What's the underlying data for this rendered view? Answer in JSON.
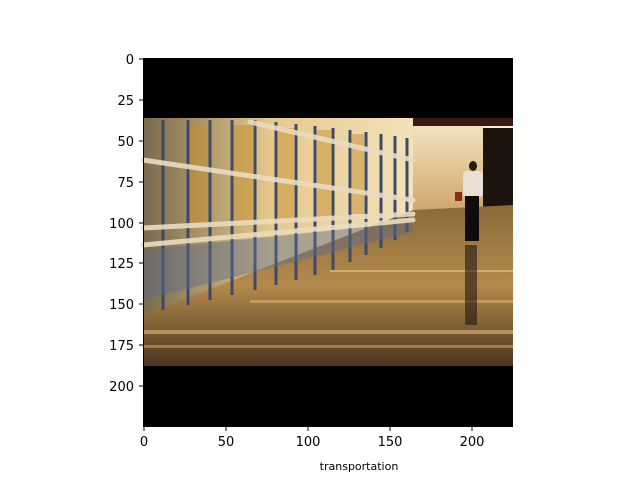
{
  "figure": {
    "caption": "transportation",
    "x_ticks": [
      "0",
      "50",
      "100",
      "150",
      "200"
    ],
    "y_ticks": [
      "0",
      "25",
      "50",
      "75",
      "100",
      "125",
      "150",
      "175",
      "200"
    ],
    "x_range": [
      0,
      225
    ],
    "y_range": [
      0,
      225
    ],
    "scene": "airport terminal corridor with glass wall, handrails and a traveler walking away",
    "colors": {
      "letterbox": "#000000",
      "warm_light": "#d8a85a",
      "floor": "#6a4e2c",
      "frame_blue": "#4a5a78"
    }
  }
}
